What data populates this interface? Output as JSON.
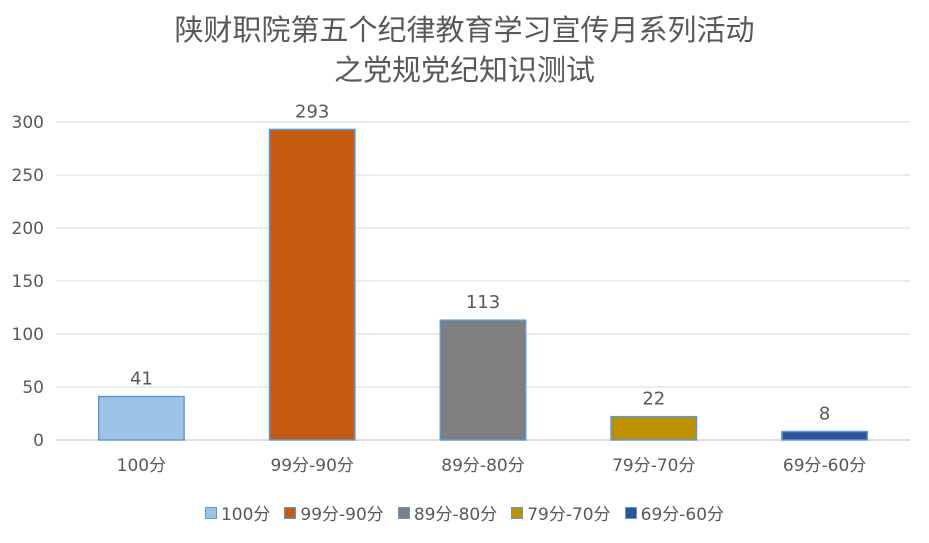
{
  "chart_data": {
    "type": "bar",
    "title_lines": [
      "陕财职院第五个纪律教育学习宣传月系列活动",
      "之党规党纪知识测试"
    ],
    "categories": [
      "100分",
      "99分-90分",
      "89分-80分",
      "79分-70分",
      "69分-60分"
    ],
    "values": [
      41,
      293,
      113,
      22,
      8
    ],
    "colors": [
      "#9dc3e6",
      "#c55a11",
      "#7f7f7f",
      "#bf9000",
      "#2f5597"
    ],
    "ylim": [
      0,
      300
    ],
    "yticks": [
      "0",
      "50",
      "100",
      "150",
      "200",
      "250",
      "300"
    ],
    "data_labels": [
      "41",
      "293",
      "113",
      "22",
      "8"
    ],
    "legend": [
      "100分",
      "99分-90分",
      "89分-80分",
      "79分-70分",
      "69分-60分"
    ],
    "legend_position": "bottom",
    "grid": true
  }
}
